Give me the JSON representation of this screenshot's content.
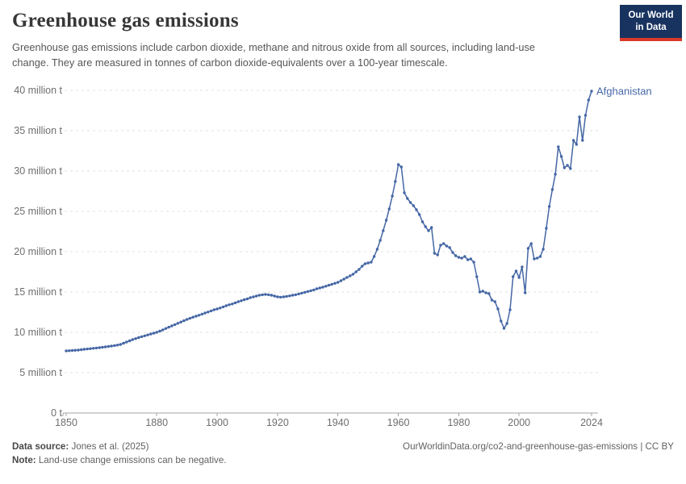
{
  "header": {
    "title": "Greenhouse gas emissions",
    "subtitle": "Greenhouse gas emissions include carbon dioxide, methane and nitrous oxide from all sources, including land-use change. They are measured in tonnes of carbon dioxide-equivalents over a 100-year timescale.",
    "logo": {
      "line1": "Our World",
      "line2": "in Data"
    }
  },
  "chart_data": {
    "type": "line",
    "title": "Greenhouse gas emissions",
    "entity_label": "Afghanistan",
    "x_ticks": [
      1850,
      1880,
      1900,
      1920,
      1940,
      1960,
      1980,
      2000,
      2024
    ],
    "y_tick_labels": [
      "0 t",
      "5 million t",
      "10 million t",
      "15 million t",
      "20 million t",
      "25 million t",
      "30 million t",
      "35 million t",
      "40 million t"
    ],
    "y_tick_values": [
      0,
      5,
      10,
      15,
      20,
      25,
      30,
      35,
      40
    ],
    "ylim": [
      0,
      40
    ],
    "xlim": [
      1850,
      2024
    ],
    "grid": "horizontal-dashed",
    "unit": "million tonnes CO2-equivalents",
    "series": [
      {
        "name": "Afghanistan",
        "color": "#4567a5",
        "year_start": 1850,
        "values": [
          7.7,
          7.72,
          7.75,
          7.78,
          7.8,
          7.85,
          7.9,
          7.94,
          7.98,
          8.02,
          8.06,
          8.1,
          8.15,
          8.2,
          8.25,
          8.3,
          8.36,
          8.42,
          8.5,
          8.65,
          8.8,
          8.95,
          9.1,
          9.22,
          9.35,
          9.46,
          9.57,
          9.68,
          9.79,
          9.9,
          10.0,
          10.15,
          10.3,
          10.48,
          10.64,
          10.8,
          10.96,
          11.12,
          11.28,
          11.44,
          11.6,
          11.74,
          11.88,
          12.0,
          12.12,
          12.26,
          12.4,
          12.52,
          12.66,
          12.8,
          12.9,
          13.02,
          13.16,
          13.3,
          13.42,
          13.52,
          13.66,
          13.8,
          13.92,
          14.05,
          14.15,
          14.3,
          14.4,
          14.5,
          14.6,
          14.66,
          14.7,
          14.66,
          14.6,
          14.5,
          14.4,
          14.36,
          14.4,
          14.46,
          14.52,
          14.6,
          14.66,
          14.76,
          14.86,
          14.96,
          15.06,
          15.16,
          15.26,
          15.4,
          15.5,
          15.6,
          15.72,
          15.84,
          15.96,
          16.08,
          16.2,
          16.4,
          16.6,
          16.8,
          17.0,
          17.2,
          17.5,
          17.8,
          18.2,
          18.5,
          18.6,
          18.7,
          19.4,
          20.3,
          21.4,
          22.6,
          23.9,
          25.3,
          26.9,
          28.7,
          30.8,
          30.5,
          27.3,
          26.6,
          26.1,
          25.7,
          25.2,
          24.6,
          23.7,
          23.1,
          22.6,
          23.0,
          19.8,
          19.6,
          20.8,
          21.0,
          20.7,
          20.5,
          19.9,
          19.5,
          19.3,
          19.2,
          19.4,
          19.0,
          19.1,
          18.7,
          16.9,
          15.0,
          15.1,
          14.9,
          14.8,
          14.0,
          13.8,
          12.9,
          11.4,
          10.5,
          11.1,
          12.8,
          16.9,
          17.6,
          16.8,
          18.1,
          14.9,
          20.4,
          21.0,
          19.1,
          19.2,
          19.4,
          20.3,
          22.9,
          25.6,
          27.7,
          29.6,
          33.0,
          31.8,
          30.4,
          30.7,
          30.3,
          33.8,
          33.3,
          36.7,
          33.8,
          36.9,
          38.8,
          39.9
        ]
      }
    ]
  },
  "footer": {
    "source_prefix": "Data source:",
    "source_text": " Jones et al. (2025)",
    "url_text": "OurWorldinData.org/co2-and-greenhouse-gas-emissions | CC BY",
    "note_prefix": "Note:",
    "note_text": " Land-use change emissions can be negative."
  },
  "colors": {
    "series_blue": "#4567a5",
    "logo_navy": "#18335f",
    "logo_red": "#d93a2b",
    "grid": "#e0e0e0",
    "axis": "#a5a5a5",
    "tick_text": "#6e6e6e"
  }
}
